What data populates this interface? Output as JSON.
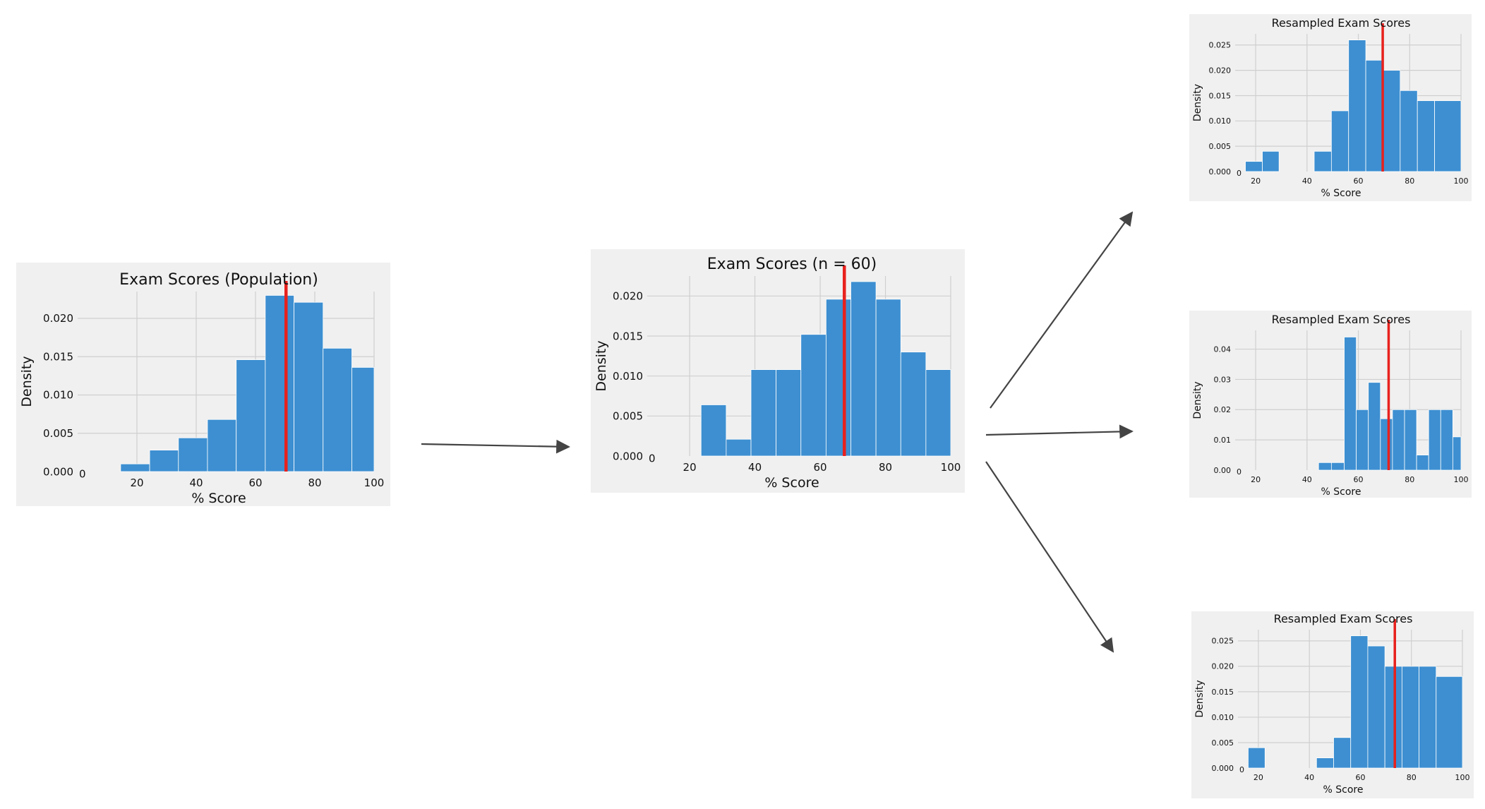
{
  "colors": {
    "bar": "#3d8fd1",
    "mean_line": "#e8211d",
    "panel_background": "#f0f0f0",
    "grid": "#cfcfcf",
    "arrow": "#444444"
  },
  "chart_data": [
    {
      "id": "population",
      "type": "bar",
      "title": "Exam Scores (Population)",
      "xlabel": "% Score",
      "ylabel": "Density",
      "xlim": [
        0,
        100
      ],
      "ylim": [
        0,
        0.0235
      ],
      "xticks": [
        "0",
        "20",
        "40",
        "60",
        "80",
        "100"
      ],
      "yticks": [
        "0.000",
        "0.005",
        "0.010",
        "0.015",
        "0.020"
      ],
      "bins": [
        [
          14.5,
          24.3
        ],
        [
          24.3,
          34.0
        ],
        [
          34.0,
          43.8
        ],
        [
          43.8,
          53.5
        ],
        [
          53.5,
          63.3
        ],
        [
          63.3,
          73.0
        ],
        [
          73.0,
          82.8
        ],
        [
          82.8,
          92.5
        ],
        [
          92.5,
          100
        ]
      ],
      "values": [
        0.001,
        0.0028,
        0.0044,
        0.0068,
        0.0146,
        0.023,
        0.0221,
        0.0161,
        0.0136
      ],
      "mean": 70.3,
      "grid": true
    },
    {
      "id": "sample",
      "type": "bar",
      "title": "Exam Scores (n = 60)",
      "xlabel": "% Score",
      "ylabel": "Density",
      "xlim": [
        7,
        100
      ],
      "ylim": [
        0,
        0.0225
      ],
      "xticks": [
        "0",
        "20",
        "40",
        "60",
        "80",
        "100"
      ],
      "yticks": [
        "0.000",
        "0.005",
        "0.010",
        "0.015",
        "0.020"
      ],
      "bins": [
        [
          23.5,
          31.2
        ],
        [
          31.2,
          38.8
        ],
        [
          38.8,
          46.5
        ],
        [
          46.5,
          54.1
        ],
        [
          54.1,
          61.8
        ],
        [
          61.8,
          69.4
        ],
        [
          69.4,
          77.1
        ],
        [
          77.1,
          84.7
        ],
        [
          84.7,
          92.4
        ],
        [
          92.4,
          100
        ]
      ],
      "values": [
        0.0064,
        0.0021,
        0.0108,
        0.0108,
        0.0152,
        0.0196,
        0.0218,
        0.0196,
        0.013,
        0.0108
      ],
      "mean": 67.4,
      "grid": true
    },
    {
      "id": "resample-1",
      "type": "bar",
      "title": "Resampled Exam Scores",
      "xlabel": "% Score",
      "ylabel": "Density",
      "xlim": [
        12,
        100
      ],
      "ylim": [
        0,
        0.0272
      ],
      "xticks": [
        "0",
        "20",
        "40",
        "60",
        "80",
        "100"
      ],
      "yticks": [
        "0.000",
        "0.005",
        "0.010",
        "0.015",
        "0.020",
        "0.025"
      ],
      "bins": [
        [
          16,
          22.6
        ],
        [
          22.6,
          29.1
        ],
        [
          36.2,
          42.8
        ],
        [
          42.8,
          49.5
        ],
        [
          49.5,
          56.2
        ],
        [
          56.2,
          62.9
        ],
        [
          62.9,
          69.6
        ],
        [
          69.6,
          76.3
        ],
        [
          76.3,
          83.0
        ],
        [
          83.0,
          89.7
        ],
        [
          89.7,
          100
        ]
      ],
      "values": [
        0.002,
        0.004,
        0.0,
        0.004,
        0.012,
        0.026,
        0.022,
        0.02,
        0.016,
        0.014,
        0.014
      ],
      "mean": 69.5,
      "grid": true
    },
    {
      "id": "resample-2",
      "type": "bar",
      "title": "Resampled Exam Scores",
      "xlabel": "% Score",
      "ylabel": "Density",
      "xlim": [
        12,
        100
      ],
      "ylim": [
        0,
        0.0462
      ],
      "xticks": [
        "0",
        "20",
        "40",
        "60",
        "80",
        "100"
      ],
      "yticks": [
        "0.00",
        "0.01",
        "0.02",
        "0.03",
        "0.04"
      ],
      "bins": [
        [
          44.5,
          49.5
        ],
        [
          49.5,
          54.5
        ],
        [
          54.5,
          59.2
        ],
        [
          59.2,
          63.9
        ],
        [
          63.9,
          68.6
        ],
        [
          68.6,
          73.3
        ],
        [
          73.3,
          78.0
        ],
        [
          78.0,
          82.7
        ],
        [
          82.7,
          87.4
        ],
        [
          87.4,
          92.1
        ],
        [
          92.1,
          96.8
        ],
        [
          96.8,
          100
        ]
      ],
      "values": [
        0.0025,
        0.0025,
        0.044,
        0.02,
        0.029,
        0.017,
        0.02,
        0.02,
        0.005,
        0.02,
        0.02,
        0.011
      ],
      "mean": 71.8,
      "grid": true
    },
    {
      "id": "resample-3",
      "type": "bar",
      "title": "Resampled Exam Scores",
      "xlabel": "% Score",
      "ylabel": "Density",
      "xlim": [
        12,
        100
      ],
      "ylim": [
        0,
        0.0272
      ],
      "xticks": [
        "0",
        "20",
        "40",
        "60",
        "80",
        "100"
      ],
      "yticks": [
        "0.000",
        "0.005",
        "0.010",
        "0.015",
        "0.020",
        "0.025"
      ],
      "bins": [
        [
          16,
          22.6
        ],
        [
          42.8,
          49.5
        ],
        [
          49.5,
          56.2
        ],
        [
          56.2,
          62.9
        ],
        [
          62.9,
          69.6
        ],
        [
          69.6,
          76.3
        ],
        [
          76.3,
          83.0
        ],
        [
          83.0,
          89.7
        ],
        [
          89.7,
          100
        ]
      ],
      "values": [
        0.004,
        0.002,
        0.006,
        0.026,
        0.024,
        0.02,
        0.02,
        0.02,
        0.018
      ],
      "mean": 73.5,
      "grid": true
    }
  ]
}
